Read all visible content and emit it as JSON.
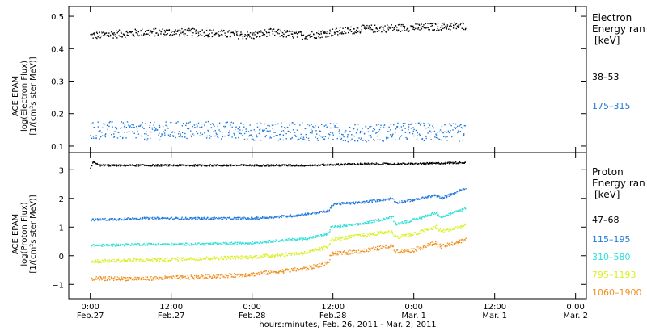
{
  "chart_data": [
    {
      "type": "scatter",
      "ylabel": [
        "ACE EPAM",
        "log(Electron Flux)",
        "[1/(cm²s ster MeV)]"
      ],
      "ylim": [
        0.08,
        0.53
      ],
      "yticks": [
        0.1,
        0.2,
        0.3,
        0.4,
        0.5
      ],
      "ytick_labels": [
        "0.1",
        "0.2",
        "0.3",
        "0.4",
        "0.5"
      ],
      "legend": {
        "title": [
          "Electron",
          "Energy ran",
          "[keV]"
        ],
        "entries": [
          {
            "label": "38–53",
            "color": "#000000"
          },
          {
            "label": "175–315",
            "color": "#1e78dc"
          }
        ]
      },
      "series": [
        {
          "name": "38–53",
          "color": "#000000",
          "scatter": 0.012,
          "points": [
            [
              0,
              0.44
            ],
            [
              1,
              0.45
            ],
            [
              2,
              0.45
            ],
            [
              3,
              0.44
            ],
            [
              3.3,
              0.45
            ],
            [
              4,
              0.44
            ],
            [
              5,
              0.46
            ],
            [
              6,
              0.465
            ],
            [
              6.95,
              0.47
            ]
          ]
        },
        {
          "name": "175–315",
          "color": "#1e78dc",
          "scatter": 0.028,
          "points": [
            [
              0,
              0.15
            ],
            [
              1,
              0.145
            ],
            [
              2,
              0.15
            ],
            [
              3,
              0.145
            ],
            [
              4,
              0.145
            ],
            [
              5,
              0.14
            ],
            [
              6,
              0.145
            ],
            [
              6.95,
              0.14
            ]
          ]
        }
      ]
    },
    {
      "type": "scatter",
      "ylabel": [
        "ACE EPAM",
        "log(Proton Flux)",
        "[1/(cm²s ster MeV)]"
      ],
      "ylim": [
        -1.5,
        3.6
      ],
      "yticks": [
        -1,
        0,
        1,
        2,
        3
      ],
      "ytick_labels": [
        "−1",
        "0",
        "1",
        "2",
        "3"
      ],
      "legend": {
        "title": [
          "Proton",
          "Energy ran",
          "[keV]"
        ],
        "entries": [
          {
            "label": "47–68",
            "color": "#000000"
          },
          {
            "label": "115–195",
            "color": "#1e78dc"
          },
          {
            "label": "310–580",
            "color": "#30e0d8"
          },
          {
            "label": "795–1193",
            "color": "#d8f020"
          },
          {
            "label": "1060–1900",
            "color": "#f09020"
          }
        ]
      },
      "series": [
        {
          "name": "47–68",
          "color": "#000000",
          "scatter": 0.03,
          "points": [
            [
              0,
              3.05
            ],
            [
              0.05,
              3.3
            ],
            [
              0.15,
              3.15
            ],
            [
              1,
              3.15
            ],
            [
              2,
              3.15
            ],
            [
              3,
              3.15
            ],
            [
              4,
              3.15
            ],
            [
              5,
              3.2
            ],
            [
              6,
              3.2
            ],
            [
              6.95,
              3.25
            ]
          ]
        },
        {
          "name": "115–195",
          "color": "#1e78dc",
          "scatter": 0.04,
          "points": [
            [
              0,
              1.25
            ],
            [
              1,
              1.3
            ],
            [
              2,
              1.3
            ],
            [
              3,
              1.3
            ],
            [
              3.8,
              1.4
            ],
            [
              4.4,
              1.55
            ],
            [
              4.5,
              1.8
            ],
            [
              5,
              1.85
            ],
            [
              5.6,
              2.0
            ],
            [
              5.65,
              1.85
            ],
            [
              6,
              1.95
            ],
            [
              6.4,
              2.1
            ],
            [
              6.5,
              2.0
            ],
            [
              6.95,
              2.35
            ]
          ]
        },
        {
          "name": "310–580",
          "color": "#30e0d8",
          "scatter": 0.04,
          "points": [
            [
              0,
              0.35
            ],
            [
              1,
              0.4
            ],
            [
              2,
              0.4
            ],
            [
              3,
              0.45
            ],
            [
              4,
              0.6
            ],
            [
              4.4,
              0.75
            ],
            [
              4.45,
              1.0
            ],
            [
              5,
              1.1
            ],
            [
              5.6,
              1.35
            ],
            [
              5.65,
              1.1
            ],
            [
              6,
              1.25
            ],
            [
              6.4,
              1.5
            ],
            [
              6.5,
              1.35
            ],
            [
              6.95,
              1.65
            ]
          ]
        },
        {
          "name": "795–1193",
          "color": "#d8f020",
          "scatter": 0.06,
          "points": [
            [
              0,
              -0.2
            ],
            [
              1,
              -0.15
            ],
            [
              2,
              -0.1
            ],
            [
              3,
              -0.05
            ],
            [
              4,
              0.1
            ],
            [
              4.4,
              0.3
            ],
            [
              4.45,
              0.55
            ],
            [
              5,
              0.7
            ],
            [
              5.6,
              0.85
            ],
            [
              5.65,
              0.65
            ],
            [
              6,
              0.75
            ],
            [
              6.4,
              1.0
            ],
            [
              6.5,
              0.85
            ],
            [
              6.95,
              1.05
            ]
          ]
        },
        {
          "name": "1060–1900",
          "color": "#f09020",
          "scatter": 0.07,
          "points": [
            [
              0,
              -0.8
            ],
            [
              1,
              -0.8
            ],
            [
              2,
              -0.75
            ],
            [
              3,
              -0.65
            ],
            [
              4,
              -0.45
            ],
            [
              4.4,
              -0.25
            ],
            [
              4.45,
              0.05
            ],
            [
              5,
              0.15
            ],
            [
              5.6,
              0.35
            ],
            [
              5.65,
              0.15
            ],
            [
              6,
              0.2
            ],
            [
              6.4,
              0.45
            ],
            [
              6.5,
              0.3
            ],
            [
              6.95,
              0.55
            ]
          ]
        }
      ]
    }
  ],
  "x_axis": {
    "xlim": [
      -0.4,
      9.2
    ],
    "ticks": [
      {
        "x": 0,
        "time": "0:00",
        "date": "Feb.27"
      },
      {
        "x": 1.5,
        "time": "12:00",
        "date": "Feb.27"
      },
      {
        "x": 3,
        "time": "0:00",
        "date": "Feb.28"
      },
      {
        "x": 4.5,
        "time": "12:00",
        "date": "Feb.28"
      },
      {
        "x": 6,
        "time": "0:00",
        "date": "Mar. 1"
      },
      {
        "x": 7.5,
        "time": "12:00",
        "date": "Mar. 1"
      },
      {
        "x": 9,
        "time": "0:00",
        "date": "Mar. 2"
      }
    ],
    "label": "hours:minutes, Feb. 26, 2011 - Mar. 2, 2011"
  }
}
